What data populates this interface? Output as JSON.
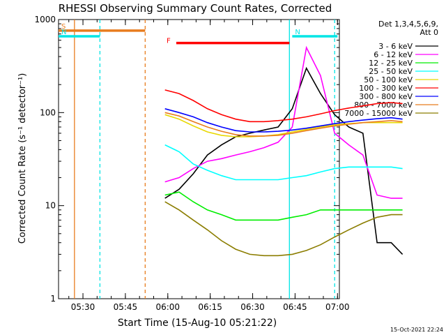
{
  "chart_data": {
    "type": "line",
    "title": "RHESSI Observing Summary Count Rates, Corrected",
    "xlabel": "Start Time (15-Aug-10 05:21:22)",
    "ylabel": "Corrected Count Rate (s⁻¹ detector⁻¹)",
    "y_scale": "log",
    "ylim": [
      1,
      1000
    ],
    "xlim": [
      "05:21:22",
      "07:00:40"
    ],
    "x_ticks": [
      "05:30",
      "05:45",
      "06:00",
      "06:15",
      "06:30",
      "06:45",
      "07:00"
    ],
    "y_ticks": [
      "1",
      "10",
      "100",
      "1000"
    ],
    "legend_header": [
      "Det 1,3,4,5,6,9,",
      "Att 0"
    ],
    "legend_placement": "right",
    "timestamp": "15-Oct-2021 22:24",
    "flags": [
      {
        "label": "S",
        "color": "#e87c1e",
        "start": "05:21",
        "end": "05:52",
        "y": 760
      },
      {
        "label": "N",
        "color": "#00e5e5",
        "start": "05:21",
        "end": "05:36",
        "y": 660
      },
      {
        "label": "N",
        "color": "#00e5e5",
        "start": "06:44",
        "end": "07:00",
        "y": 660
      },
      {
        "label": "F",
        "color": "#ff0000",
        "start": "06:03",
        "end": "06:43",
        "y": 560
      }
    ],
    "marker_lines": [
      {
        "time": "05:27",
        "color": "#e87c1e",
        "style": "solid"
      },
      {
        "time": "05:36",
        "color": "#00e5e5",
        "style": "dashed"
      },
      {
        "time": "05:52",
        "color": "#e87c1e",
        "style": "dashed"
      },
      {
        "time": "06:43",
        "color": "#00e5e5",
        "style": "solid"
      },
      {
        "time": "06:59",
        "color": "#00e5e5",
        "style": "dashed"
      }
    ],
    "x_minutes": [
      0,
      5,
      10,
      15,
      20,
      25,
      30,
      35,
      40,
      45,
      50,
      55,
      60,
      65,
      70,
      75,
      80,
      84
    ],
    "series": [
      {
        "name": "3 - 6 keV",
        "color": "#000000",
        "values": [
          12,
          15,
          22,
          35,
          45,
          55,
          60,
          65,
          70,
          110,
          300,
          160,
          95,
          70,
          60,
          4,
          4,
          3
        ]
      },
      {
        "name": "6 - 12 keV",
        "color": "#ff00ff",
        "values": [
          18,
          20,
          25,
          30,
          32,
          35,
          38,
          42,
          48,
          70,
          500,
          250,
          60,
          45,
          35,
          13,
          12,
          12
        ]
      },
      {
        "name": "12 - 25 keV",
        "color": "#00ee00",
        "values": [
          13,
          14,
          11,
          9,
          8,
          7,
          7,
          7,
          7,
          7.5,
          8,
          9,
          9,
          9,
          9,
          9,
          9,
          9
        ]
      },
      {
        "name": "25 - 50 keV",
        "color": "#00ffff",
        "values": [
          45,
          38,
          28,
          24,
          21,
          19,
          19,
          19,
          19,
          20,
          21,
          23,
          25,
          26,
          26,
          26,
          26,
          25
        ]
      },
      {
        "name": "50 - 100 keV",
        "color": "#e8d800",
        "values": [
          95,
          85,
          72,
          62,
          57,
          55,
          55,
          56,
          58,
          62,
          66,
          70,
          74,
          76,
          78,
          78,
          78,
          78
        ]
      },
      {
        "name": "100 - 300 keV",
        "color": "#ff0000",
        "values": [
          175,
          160,
          135,
          110,
          95,
          85,
          80,
          80,
          82,
          85,
          90,
          97,
          105,
          112,
          118,
          125,
          128,
          125
        ]
      },
      {
        "name": "300 - 800 keV",
        "color": "#0000ff",
        "values": [
          110,
          100,
          90,
          78,
          70,
          64,
          62,
          62,
          63,
          65,
          68,
          72,
          76,
          80,
          83,
          86,
          88,
          85
        ]
      },
      {
        "name": "800 - 7000 keV",
        "color": "#e87c1e",
        "values": [
          100,
          92,
          80,
          70,
          63,
          58,
          56,
          56,
          57,
          60,
          64,
          68,
          72,
          75,
          78,
          80,
          82,
          80
        ]
      },
      {
        "name": "7000 - 15000 keV",
        "color": "#8b7d00",
        "values": [
          11,
          9,
          7,
          5.5,
          4.2,
          3.4,
          3.0,
          2.9,
          2.9,
          3.0,
          3.3,
          3.8,
          4.6,
          5.5,
          6.5,
          7.5,
          8,
          8
        ]
      }
    ]
  }
}
